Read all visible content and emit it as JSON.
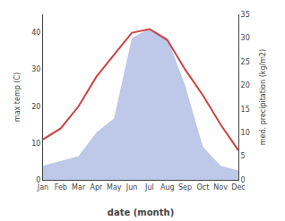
{
  "chart_data": {
    "type": "line",
    "xlabel": "date (month)",
    "ylabel": "max temp (C)",
    "y2label": "med. precipitation (kg/m2)",
    "categories": [
      "Jan",
      "Feb",
      "Mar",
      "Apr",
      "May",
      "Jun",
      "Jul",
      "Aug",
      "Sep",
      "Oct",
      "Nov",
      "Dec"
    ],
    "series": [
      {
        "type": "area",
        "axis": "y2",
        "color": "#bec8e8",
        "values": [
          3,
          4,
          5,
          10,
          13,
          30,
          32,
          30,
          20,
          7,
          3,
          2
        ]
      },
      {
        "type": "line",
        "color": "#cc4444",
        "values": [
          11,
          14,
          20,
          28,
          34,
          40,
          41,
          38,
          30,
          23,
          15,
          8
        ]
      }
    ],
    "ylim": [
      0,
      45
    ],
    "yticks": [
      0,
      10,
      20,
      30,
      40
    ],
    "y2lim": [
      0,
      35
    ],
    "y2ticks": [
      0,
      5,
      10,
      15,
      20,
      25,
      30,
      35
    ],
    "grid": false
  }
}
